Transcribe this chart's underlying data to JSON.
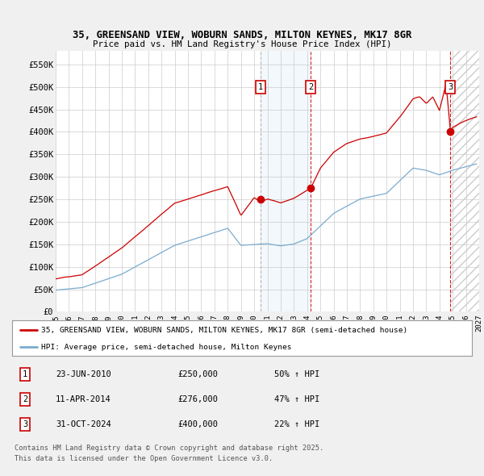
{
  "title1": "35, GREENSAND VIEW, WOBURN SANDS, MILTON KEYNES, MK17 8GR",
  "title2": "Price paid vs. HM Land Registry's House Price Index (HPI)",
  "ylim": [
    0,
    580000
  ],
  "yticks": [
    0,
    50000,
    100000,
    150000,
    200000,
    250000,
    300000,
    350000,
    400000,
    450000,
    500000,
    550000
  ],
  "ytick_labels": [
    "£0",
    "£50K",
    "£100K",
    "£150K",
    "£200K",
    "£250K",
    "£300K",
    "£350K",
    "£400K",
    "£450K",
    "£500K",
    "£550K"
  ],
  "xlim_start": 1995.0,
  "xlim_end": 2027.0,
  "xticks": [
    1995,
    1996,
    1997,
    1998,
    1999,
    2000,
    2001,
    2002,
    2003,
    2004,
    2005,
    2006,
    2007,
    2008,
    2009,
    2010,
    2011,
    2012,
    2013,
    2014,
    2015,
    2016,
    2017,
    2018,
    2019,
    2020,
    2021,
    2022,
    2023,
    2024,
    2025,
    2026,
    2027
  ],
  "sale_dates": [
    2010.479,
    2014.278,
    2024.833
  ],
  "sale_prices": [
    250000,
    276000,
    400000
  ],
  "sale_labels": [
    "1",
    "2",
    "3"
  ],
  "transaction1": {
    "date": "23-JUN-2010",
    "price": "£250,000",
    "pct": "50%",
    "dir": "↑"
  },
  "transaction2": {
    "date": "11-APR-2014",
    "price": "£276,000",
    "pct": "47%",
    "dir": "↑"
  },
  "transaction3": {
    "date": "31-OCT-2024",
    "price": "£400,000",
    "pct": "22%",
    "dir": "↑"
  },
  "red_line_color": "#cc0000",
  "blue_line_color": "#7aabcf",
  "bg_color": "#f0f0f0",
  "plot_bg_color": "#ffffff",
  "grid_color": "#cccccc",
  "shade_color": "#d6e8f5",
  "hatch_color": "#cccccc",
  "legend_label_red": "35, GREENSAND VIEW, WOBURN SANDS, MILTON KEYNES, MK17 8GR (semi-detached house)",
  "legend_label_blue": "HPI: Average price, semi-detached house, Milton Keynes",
  "footer1": "Contains HM Land Registry data © Crown copyright and database right 2025.",
  "footer2": "This data is licensed under the Open Government Licence v3.0."
}
